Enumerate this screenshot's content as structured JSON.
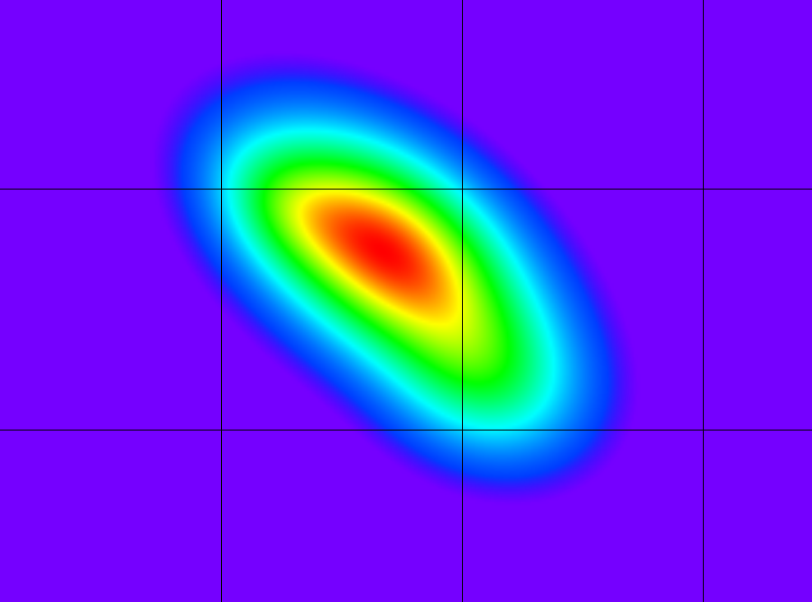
{
  "chart_data": {
    "type": "heatmap",
    "title": "",
    "xlabel": "",
    "ylabel": "",
    "xlim": [
      0,
      1
    ],
    "ylim": [
      0,
      1
    ],
    "grid": true,
    "grid_x": [
      0.2722,
      0.5689,
      0.8656
    ],
    "grid_y": [
      0.2864,
      0.6867
    ],
    "colormap": [
      "#7500ff",
      "#0000ff",
      "#00ffff",
      "#00ff00",
      "#ffff00",
      "#ff0000"
    ],
    "background_color": "#7500ff",
    "grid_color": "#000000",
    "blobs": [
      {
        "cx": 0.474,
        "cy": 0.584,
        "sx": 0.101,
        "sy": 0.118,
        "rho": -0.45,
        "amp": 0.9
      },
      {
        "cx": 0.595,
        "cy": 0.38,
        "sx": 0.075,
        "sy": 0.09,
        "rho": -0.2,
        "amp": 0.32
      },
      {
        "cx": 0.35,
        "cy": 0.66,
        "sx": 0.055,
        "sy": 0.07,
        "rho": -0.3,
        "amp": 0.18
      }
    ]
  }
}
